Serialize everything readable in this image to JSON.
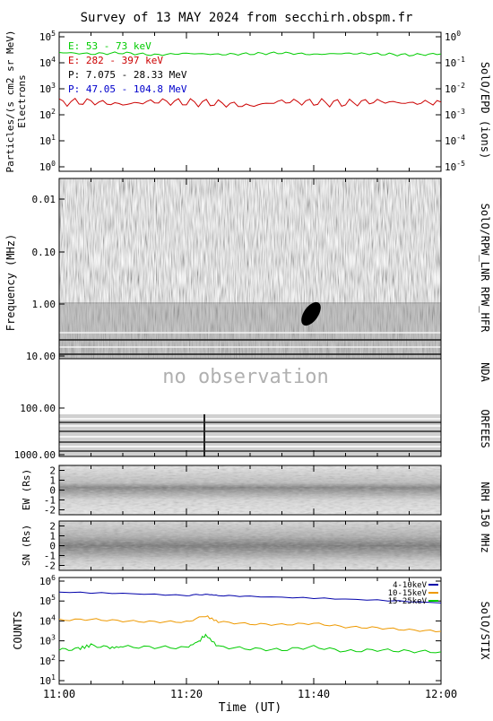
{
  "title": "Survey of 13 MAY 2024 from secchirh.obspm.fr",
  "x_axis": {
    "label": "Time (UT)",
    "ticks": [
      "11:00",
      "11:20",
      "11:40",
      "12:00"
    ]
  },
  "panels": {
    "epd": {
      "ylabel_line1": "Particles/(s cm2 sr MeV)",
      "ylabel_line2": "Electrons",
      "right_label": "SolO/EPD (ions)",
      "left_ticks": [
        "10^5",
        "10^4",
        "10^3",
        "10^2",
        "10^1",
        "10^0"
      ],
      "right_ticks": [
        "10^0",
        "10^-1",
        "10^-2",
        "10^-3",
        "10^-4",
        "10^-5"
      ],
      "legend": [
        {
          "text": "E: 53 - 73 keV",
          "color": "#00cc00"
        },
        {
          "text": "E: 282 - 397 keV",
          "color": "#cc0000"
        },
        {
          "text": "P: 7.075 - 28.33 MeV",
          "color": "#000000"
        },
        {
          "text": "P: 47.05 - 104.8 MeV",
          "color": "#0000cc"
        }
      ]
    },
    "spectrogram": {
      "ylabel": "Frequency (MHz)",
      "ticks": [
        "0.01",
        "0.10",
        "1.00",
        "10.00",
        "100.00",
        "1000.00"
      ],
      "no_observation": "no observation",
      "right_labels": [
        "SolO/RPW_LNR",
        "RPW_HFR",
        "NDA",
        "ORFEES"
      ]
    },
    "nrh": {
      "ew_label": "EW (Rs)",
      "sn_label": "SN (Rs)",
      "ticks": [
        "2",
        "1",
        "0",
        "-1",
        "-2"
      ],
      "right_label": "NRH 150 MHz"
    },
    "stix": {
      "ylabel": "COUNTS",
      "right_label": "SolO/STIX",
      "ticks": [
        "10^6",
        "10^5",
        "10^4",
        "10^3",
        "10^2",
        "10^1"
      ],
      "legend": [
        {
          "text": "4-10keV",
          "color": "#0000aa"
        },
        {
          "text": "10-15keV",
          "color": "#ee9900"
        },
        {
          "text": "15-25keV",
          "color": "#00cc00"
        }
      ]
    }
  },
  "chart_data": [
    {
      "type": "line",
      "panel": "SolO/EPD",
      "x_unit": "minutes after 11:00 UT",
      "xlim": [
        0,
        60
      ],
      "ylim": [
        1,
        100000
      ],
      "yscale": "log",
      "series": [
        {
          "name": "E: 53 - 73 keV",
          "color": "#00cc00",
          "x": [
            0,
            5,
            10,
            15,
            20,
            25,
            30,
            35,
            40,
            45,
            50,
            55,
            60
          ],
          "values": [
            25000,
            22000,
            24000,
            20000,
            23000,
            21000,
            22000,
            24000,
            21000,
            23000,
            22000,
            20000,
            22000
          ]
        },
        {
          "name": "E: 282 - 397 keV",
          "color": "#cc0000",
          "x": [
            0,
            5,
            10,
            15,
            20,
            25,
            30,
            35,
            40,
            45,
            50,
            55,
            60
          ],
          "values": [
            300,
            320,
            250,
            330,
            300,
            280,
            220,
            330,
            300,
            280,
            330,
            280,
            310
          ]
        }
      ]
    },
    {
      "type": "heatmap",
      "panel": "Radio spectrogram (SolO/RPW_LNR, RPW_HFR, NDA, ORFEES)",
      "yscale": "log",
      "ylim_mhz": [
        1000,
        0.005
      ],
      "features": [
        {
          "label": "no observation",
          "freq_range_mhz": [
            10,
            60
          ]
        }
      ]
    },
    {
      "type": "heatmap",
      "panel": "NRH 150 MHz EW",
      "ylim": [
        -2.5,
        2.5
      ]
    },
    {
      "type": "heatmap",
      "panel": "NRH 150 MHz SN",
      "ylim": [
        -2.5,
        2.5
      ]
    },
    {
      "type": "line",
      "panel": "SolO/STIX",
      "x_unit": "minutes after 11:00 UT",
      "xlim": [
        0,
        60
      ],
      "ylim": [
        10,
        1000000
      ],
      "yscale": "log",
      "series": [
        {
          "name": "4-10keV",
          "color": "#0000aa",
          "x": [
            0,
            10,
            20,
            23,
            25,
            30,
            40,
            50,
            60
          ],
          "values": [
            280000,
            240000,
            190000,
            220000,
            190000,
            170000,
            140000,
            110000,
            80000
          ]
        },
        {
          "name": "10-15keV",
          "color": "#ee9900",
          "x": [
            0,
            5,
            10,
            15,
            20,
            23,
            25,
            30,
            35,
            40,
            45,
            50,
            55,
            60
          ],
          "values": [
            11000,
            12000,
            10000,
            9000,
            9000,
            18000,
            9000,
            7000,
            6500,
            7500,
            5000,
            4500,
            3500,
            3000
          ]
        },
        {
          "name": "15-25keV",
          "color": "#00cc00",
          "x": [
            0,
            3,
            5,
            8,
            10,
            15,
            20,
            22,
            23,
            25,
            30,
            35,
            40,
            45,
            50,
            55,
            60
          ],
          "values": [
            350,
            400,
            600,
            450,
            500,
            480,
            450,
            1000,
            2000,
            500,
            400,
            350,
            500,
            300,
            350,
            300,
            280
          ]
        }
      ]
    }
  ]
}
